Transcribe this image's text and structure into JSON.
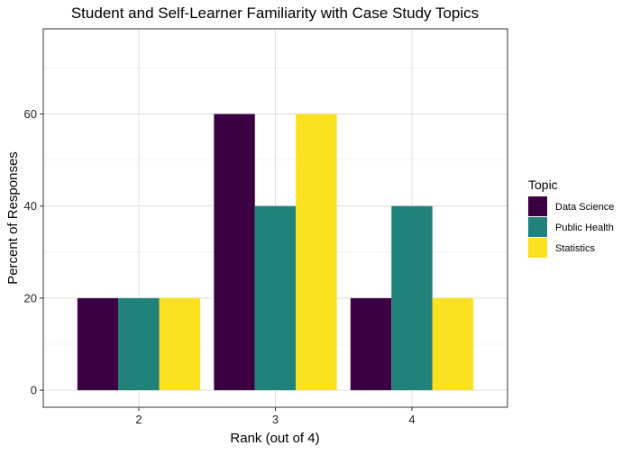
{
  "chart_data": {
    "type": "bar",
    "title": "Student and Self-Learner Familiarity with Case Study Topics",
    "xlabel": "Rank (out of 4)",
    "ylabel": "Percent of Responses",
    "categories": [
      "2",
      "3",
      "4"
    ],
    "series": [
      {
        "name": "Data Science",
        "color": "#3b0042",
        "values": [
          20,
          60,
          20
        ]
      },
      {
        "name": "Public Health",
        "color": "#21817b",
        "values": [
          20,
          40,
          40
        ]
      },
      {
        "name": "Statistics",
        "color": "#fbe120",
        "values": [
          20,
          60,
          20
        ]
      }
    ],
    "yticks": [
      0,
      20,
      40,
      60
    ],
    "ylim": [
      -3.7,
      78.5
    ],
    "grid": true,
    "legend": {
      "title": "Topic",
      "position": "right"
    }
  }
}
